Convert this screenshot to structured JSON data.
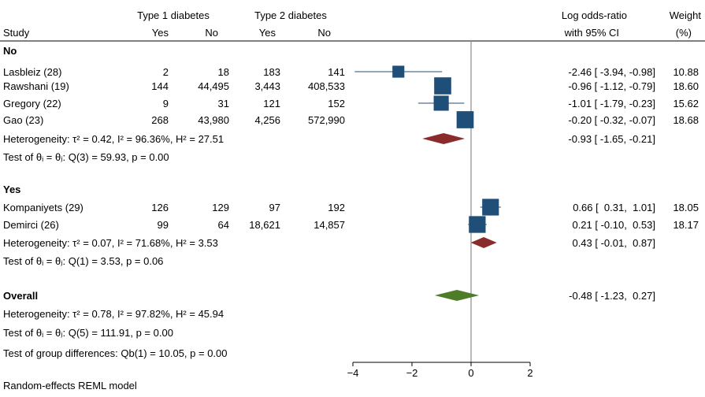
{
  "headers": {
    "study": "Study",
    "t1": "Type 1 diabetes",
    "t2": "Type 2 diabetes",
    "yes": "Yes",
    "no": "No",
    "lor1": "Log odds-ratio",
    "lor2": "with 95% CI",
    "weight1": "Weight",
    "weight2": "(%)"
  },
  "groups": [
    {
      "label": "No",
      "studies": [
        {
          "name": "Lasbleiz (28)",
          "t1_yes": "2",
          "t1_no": "18",
          "t2_yes": "183",
          "t2_no": "141",
          "ci": "-2.46 [ -3.94, -0.98]",
          "weight": "10.88"
        },
        {
          "name": "Rawshani (19)",
          "t1_yes": "144",
          "t1_no": "44,495",
          "t2_yes": "3,443",
          "t2_no": "408,533",
          "ci": "-0.96 [ -1.12, -0.79]",
          "weight": "18.60"
        },
        {
          "name": "Gregory (22)",
          "t1_yes": "9",
          "t1_no": "31",
          "t2_yes": "121",
          "t2_no": "152",
          "ci": "-1.01 [ -1.79, -0.23]",
          "weight": "15.62"
        },
        {
          "name": "Gao (23)",
          "t1_yes": "268",
          "t1_no": "43,980",
          "t2_yes": "4,256",
          "t2_no": "572,990",
          "ci": "-0.20 [ -0.32, -0.07]",
          "weight": "18.68"
        }
      ],
      "heterogeneity": "Heterogeneity: τ² = 0.42, I² = 96.36%, H² = 27.51",
      "test": "Test of θᵢ = θⱼ: Q(3) = 59.93, p = 0.00",
      "pooled_ci": "-0.93 [ -1.65, -0.21]"
    },
    {
      "label": "Yes",
      "studies": [
        {
          "name": "Kompaniyets (29)",
          "t1_yes": "126",
          "t1_no": "129",
          "t2_yes": "97",
          "t2_no": "192",
          "ci": "0.66 [  0.31,  1.01]",
          "weight": "18.05"
        },
        {
          "name": "Demirci (26)",
          "t1_yes": "99",
          "t1_no": "64",
          "t2_yes": "18,621",
          "t2_no": "14,857",
          "ci": "0.21 [ -0.10,  0.53]",
          "weight": "18.17"
        }
      ],
      "heterogeneity": "Heterogeneity: τ² = 0.07, I² = 71.68%, H² = 3.53",
      "test": "Test of θᵢ = θⱼ: Q(1) = 3.53, p = 0.06",
      "pooled_ci": "0.43 [ -0.01,  0.87]"
    }
  ],
  "overall": {
    "label": "Overall",
    "heterogeneity": "Heterogeneity: τ² = 0.78, I² = 97.82%, H² = 45.94",
    "test": "Test of θᵢ = θⱼ: Q(5) = 111.91, p = 0.00",
    "ci": "-0.48 [ -1.23,  0.27]"
  },
  "group_diff": "Test of group differences: Qb(1) = 10.05, p = 0.00",
  "footer": "Random-effects REML model",
  "colors": {
    "study_marker": "#1f4e79",
    "subgroup_diamond": "#8b2c2c",
    "overall_diamond": "#4e7d2a",
    "null_line": "#8c8c8c"
  },
  "chart_data": {
    "type": "forest",
    "xlabel": "",
    "xlim": [
      -4,
      2
    ],
    "xticks": [
      -4,
      -2,
      0,
      2
    ],
    "null_line": 0,
    "studies": [
      {
        "name": "Lasbleiz (28)",
        "group": "No",
        "est": -2.46,
        "lo": -3.94,
        "hi": -0.98,
        "weight": 10.88
      },
      {
        "name": "Rawshani (19)",
        "group": "No",
        "est": -0.96,
        "lo": -1.12,
        "hi": -0.79,
        "weight": 18.6
      },
      {
        "name": "Gregory (22)",
        "group": "No",
        "est": -1.01,
        "lo": -1.79,
        "hi": -0.23,
        "weight": 15.62
      },
      {
        "name": "Gao (23)",
        "group": "No",
        "est": -0.2,
        "lo": -0.32,
        "hi": -0.07,
        "weight": 18.68
      },
      {
        "name": "Kompaniyets (29)",
        "group": "Yes",
        "est": 0.66,
        "lo": 0.31,
        "hi": 1.01,
        "weight": 18.05
      },
      {
        "name": "Demirci (26)",
        "group": "Yes",
        "est": 0.21,
        "lo": -0.1,
        "hi": 0.53,
        "weight": 18.17
      }
    ],
    "pooled": [
      {
        "name": "No",
        "est": -0.93,
        "lo": -1.65,
        "hi": -0.21,
        "kind": "subgroup"
      },
      {
        "name": "Yes",
        "est": 0.43,
        "lo": -0.01,
        "hi": 0.87,
        "kind": "subgroup"
      },
      {
        "name": "Overall",
        "est": -0.48,
        "lo": -1.23,
        "hi": 0.27,
        "kind": "overall"
      }
    ]
  }
}
